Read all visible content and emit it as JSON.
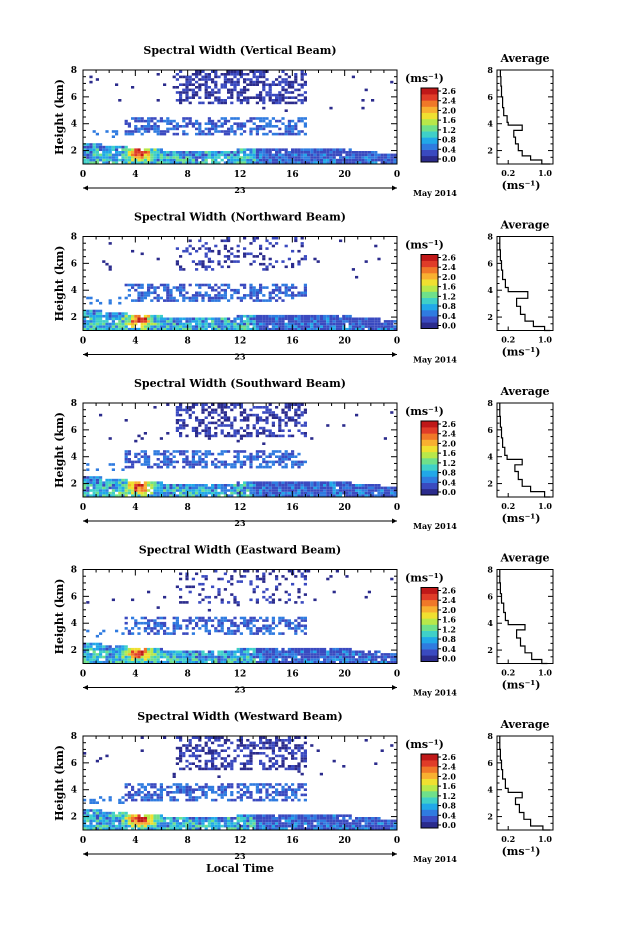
{
  "chart_data": [
    {
      "type": "heatmap",
      "title": "Spectral Width (Vertical Beam)",
      "ylabel": "Height (km)",
      "x_ticks": [
        "0",
        "4",
        "8",
        "12",
        "16",
        "20",
        "0"
      ],
      "y_ticks": [
        "2",
        "4",
        "6",
        "8"
      ],
      "ylim": [
        1,
        8
      ],
      "xlim": [
        0,
        24
      ],
      "date_labels": {
        "day": "23",
        "month_year": "May 2014"
      },
      "colorbar": {
        "unit": "(ms⁻¹)",
        "ticks": [
          "2.6",
          "2.4",
          "2.0",
          "1.6",
          "1.2",
          "0.8",
          "0.4",
          "0.0"
        ]
      },
      "profile": {
        "title": "Average",
        "xlabel": "(ms⁻¹)",
        "x_ticks": [
          "0.2",
          "1.0"
        ],
        "y_ticks": [
          "2",
          "4",
          "6",
          "8"
        ],
        "points": [
          [
            0.95,
            1.0
          ],
          [
            0.8,
            1.3
          ],
          [
            0.6,
            1.6
          ],
          [
            0.45,
            2.0
          ],
          [
            0.38,
            2.5
          ],
          [
            0.33,
            3.0
          ],
          [
            0.3,
            3.5
          ],
          [
            0.45,
            3.9
          ],
          [
            0.2,
            4.1
          ],
          [
            0.18,
            4.6
          ],
          [
            0.12,
            5.2
          ],
          [
            0.1,
            6.0
          ],
          [
            0.08,
            6.8
          ],
          [
            0.07,
            7.5
          ],
          [
            0.06,
            8.0
          ]
        ]
      }
    },
    {
      "type": "heatmap",
      "title": "Spectral Width (Northward Beam)",
      "ylabel": "Height (km)",
      "x_ticks": [
        "0",
        "4",
        "8",
        "12",
        "16",
        "20",
        "0"
      ],
      "y_ticks": [
        "2",
        "4",
        "6",
        "8"
      ],
      "ylim": [
        1,
        8
      ],
      "xlim": [
        0,
        24
      ],
      "date_labels": {
        "day": "23",
        "month_year": "May 2014"
      },
      "colorbar": {
        "unit": "(ms⁻¹)",
        "ticks": [
          "2.6",
          "2.4",
          "2.0",
          "1.6",
          "1.2",
          "0.8",
          "0.4",
          "0.0"
        ]
      },
      "profile": {
        "title": "Average",
        "xlabel": "(ms⁻¹)",
        "x_ticks": [
          "0.2",
          "1.0"
        ],
        "y_ticks": [
          "2",
          "4",
          "6",
          "8"
        ],
        "points": [
          [
            0.95,
            1.0
          ],
          [
            0.85,
            1.3
          ],
          [
            0.65,
            1.7
          ],
          [
            0.5,
            2.2
          ],
          [
            0.42,
            2.8
          ],
          [
            0.35,
            3.4
          ],
          [
            0.55,
            3.9
          ],
          [
            0.2,
            4.2
          ],
          [
            0.15,
            4.8
          ],
          [
            0.1,
            5.5
          ],
          [
            0.08,
            6.2
          ],
          [
            0.06,
            7.0
          ],
          [
            0.05,
            8.0
          ]
        ]
      }
    },
    {
      "type": "heatmap",
      "title": "Spectral Width (Southward Beam)",
      "ylabel": "Height (km)",
      "x_ticks": [
        "0",
        "4",
        "8",
        "12",
        "16",
        "20",
        "0"
      ],
      "y_ticks": [
        "2",
        "4",
        "6",
        "8"
      ],
      "ylim": [
        1,
        8
      ],
      "xlim": [
        0,
        24
      ],
      "date_labels": {
        "day": "23",
        "month_year": "May 2014"
      },
      "colorbar": {
        "unit": "(ms⁻¹)",
        "ticks": [
          "2.6",
          "2.4",
          "2.0",
          "1.6",
          "1.2",
          "0.8",
          "0.4",
          "0.0"
        ]
      },
      "profile": {
        "title": "Average",
        "xlabel": "(ms⁻¹)",
        "x_ticks": [
          "0.2",
          "1.0"
        ],
        "y_ticks": [
          "2",
          "4",
          "6",
          "8"
        ],
        "points": [
          [
            0.95,
            1.0
          ],
          [
            0.85,
            1.4
          ],
          [
            0.6,
            1.8
          ],
          [
            0.45,
            2.3
          ],
          [
            0.38,
            2.9
          ],
          [
            0.32,
            3.4
          ],
          [
            0.45,
            3.8
          ],
          [
            0.18,
            4.1
          ],
          [
            0.14,
            4.7
          ],
          [
            0.1,
            5.4
          ],
          [
            0.08,
            6.2
          ],
          [
            0.06,
            7.0
          ],
          [
            0.05,
            8.0
          ]
        ]
      }
    },
    {
      "type": "heatmap",
      "title": "Spectral Width (Eastward Beam)",
      "ylabel": "Height (km)",
      "x_ticks": [
        "0",
        "4",
        "8",
        "12",
        "16",
        "20",
        "0"
      ],
      "y_ticks": [
        "2",
        "4",
        "6",
        "8"
      ],
      "ylim": [
        1,
        8
      ],
      "xlim": [
        0,
        24
      ],
      "date_labels": {
        "day": "23",
        "month_year": "May 2014"
      },
      "colorbar": {
        "unit": "(ms⁻¹)",
        "ticks": [
          "2.6",
          "2.4",
          "2.0",
          "1.6",
          "1.2",
          "0.8",
          "0.4",
          "0.0"
        ]
      },
      "profile": {
        "title": "Average",
        "xlabel": "(ms⁻¹)",
        "x_ticks": [
          "0.2",
          "1.0"
        ],
        "y_ticks": [
          "2",
          "4",
          "6",
          "8"
        ],
        "points": [
          [
            0.9,
            1.0
          ],
          [
            0.8,
            1.3
          ],
          [
            0.62,
            1.8
          ],
          [
            0.5,
            2.3
          ],
          [
            0.42,
            2.9
          ],
          [
            0.35,
            3.5
          ],
          [
            0.5,
            3.9
          ],
          [
            0.2,
            4.2
          ],
          [
            0.15,
            4.8
          ],
          [
            0.12,
            5.5
          ],
          [
            0.08,
            6.2
          ],
          [
            0.06,
            7.0
          ],
          [
            0.05,
            8.0
          ]
        ]
      }
    },
    {
      "type": "heatmap",
      "title": "Spectral Width (Westward Beam)",
      "ylabel": "Height (km)",
      "xlabel": "Local Time",
      "x_ticks": [
        "0",
        "4",
        "8",
        "12",
        "16",
        "20",
        "0"
      ],
      "y_ticks": [
        "2",
        "4",
        "6",
        "8"
      ],
      "ylim": [
        1,
        8
      ],
      "xlim": [
        0,
        24
      ],
      "date_labels": {
        "day": "23",
        "month_year": "May 2014"
      },
      "colorbar": {
        "unit": "(ms⁻¹)",
        "ticks": [
          "2.6",
          "2.4",
          "2.0",
          "1.6",
          "1.2",
          "0.8",
          "0.4",
          "0.0"
        ]
      },
      "profile": {
        "title": "Average",
        "xlabel": "(ms⁻¹)",
        "x_ticks": [
          "0.2",
          "1.0"
        ],
        "y_ticks": [
          "2",
          "4",
          "6",
          "8"
        ],
        "points": [
          [
            0.95,
            1.0
          ],
          [
            0.82,
            1.3
          ],
          [
            0.6,
            1.8
          ],
          [
            0.48,
            2.3
          ],
          [
            0.4,
            2.9
          ],
          [
            0.33,
            3.4
          ],
          [
            0.45,
            3.8
          ],
          [
            0.2,
            4.1
          ],
          [
            0.15,
            4.8
          ],
          [
            0.1,
            5.5
          ],
          [
            0.08,
            6.2
          ],
          [
            0.06,
            7.0
          ],
          [
            0.05,
            8.0
          ]
        ]
      }
    }
  ],
  "colormap": [
    "#2b2b8c",
    "#3a4ac0",
    "#2f7be0",
    "#21a8e8",
    "#3fd0c8",
    "#6fe08a",
    "#b8e84a",
    "#f0e030",
    "#f8b030",
    "#f07828",
    "#e03c28",
    "#c01818"
  ]
}
